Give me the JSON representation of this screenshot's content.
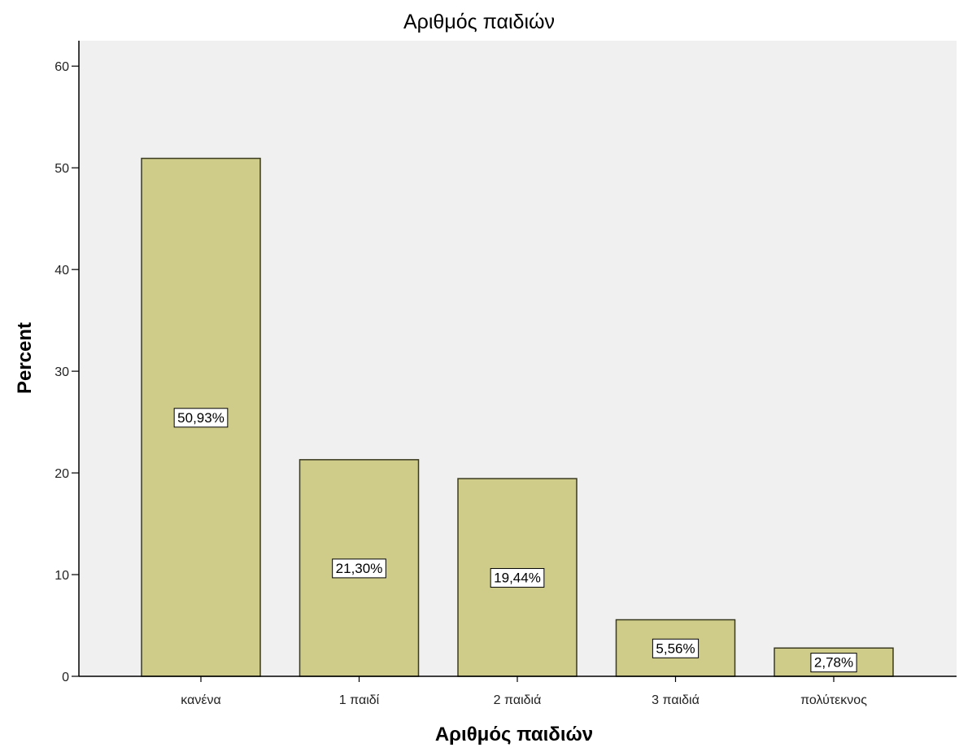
{
  "chart_data": {
    "type": "bar",
    "title": "Αριθμός παιδιών",
    "xlabel": "Αριθμός παιδιών",
    "ylabel": "Percent",
    "categories": [
      "κανένα",
      "1 παιδί",
      "2 παιδιά",
      "3 παιδιά",
      "πολύτεκνος"
    ],
    "values": [
      50.93,
      21.3,
      19.44,
      5.56,
      2.78
    ],
    "data_labels": [
      "50,93%",
      "21,30%",
      "19,44%",
      "5,56%",
      "2,78%"
    ],
    "yticks": [
      0,
      10,
      20,
      30,
      40,
      50,
      60
    ],
    "ylim": [
      0,
      62.5
    ],
    "grid": false,
    "legend": "none",
    "colors": {
      "bar_fill": "#cfcc8a",
      "bar_stroke": "#3a3a20",
      "plot_background": "#f0f0f0",
      "label_box": "#ffffff"
    }
  }
}
